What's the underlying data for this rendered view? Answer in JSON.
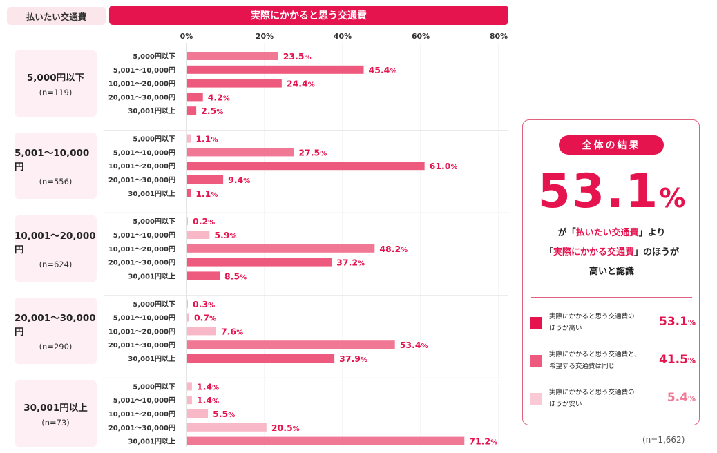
{
  "header": {
    "left_label": "払いたい交通費",
    "main_label": "実際にかかると思う交通費"
  },
  "chart_data": {
    "type": "bar",
    "orientation": "horizontal",
    "title": "実際にかかると思う交通費",
    "xlim": [
      0,
      80
    ],
    "ticks": [
      "0%",
      "20%",
      "40%",
      "60%",
      "80%"
    ],
    "tick_values": [
      0,
      20,
      40,
      60,
      80
    ],
    "categories": [
      "5,000円以下",
      "5,001〜10,000円",
      "10,001〜20,000円",
      "20,001〜30,000円",
      "30,001円以上"
    ],
    "groups": [
      {
        "name": "5,000円以下",
        "n": "(n=119)",
        "values": [
          23.5,
          45.4,
          24.4,
          4.2,
          2.5
        ],
        "labels": [
          "23.5",
          "45.4",
          "24.4",
          "4.2",
          "2.5"
        ]
      },
      {
        "name": "5,001〜10,000円",
        "n": "(n=556)",
        "values": [
          1.1,
          27.5,
          61.0,
          9.4,
          1.1
        ],
        "labels": [
          "1.1",
          "27.5",
          "61.0",
          "9.4",
          "1.1"
        ]
      },
      {
        "name": "10,001〜20,000円",
        "n": "(n=624)",
        "values": [
          0.2,
          5.9,
          48.2,
          37.2,
          8.5
        ],
        "labels": [
          "0.2",
          "5.9",
          "48.2",
          "37.2",
          "8.5"
        ]
      },
      {
        "name": "20,001〜30,000円",
        "n": "(n=290)",
        "values": [
          0.3,
          0.7,
          7.6,
          53.4,
          37.9
        ],
        "labels": [
          "0.3",
          "0.7",
          "7.6",
          "53.4",
          "37.9"
        ]
      },
      {
        "name": "30,001円以上",
        "n": "(n=73)",
        "values": [
          1.4,
          1.4,
          5.5,
          20.5,
          71.2
        ],
        "labels": [
          "1.4",
          "1.4",
          "5.5",
          "20.5",
          "71.2"
        ]
      }
    ],
    "percent_unit": "%",
    "bar_colors": {
      "higher": "#ee5a7e",
      "same": "#f07894",
      "lower": "#f8b8c8"
    },
    "bar_tiers": [
      [
        "same",
        "higher",
        "higher",
        "higher",
        "higher"
      ],
      [
        "lower",
        "same",
        "higher",
        "higher",
        "higher"
      ],
      [
        "lower",
        "lower",
        "same",
        "higher",
        "higher"
      ],
      [
        "lower",
        "lower",
        "lower",
        "same",
        "higher"
      ],
      [
        "lower",
        "lower",
        "lower",
        "lower",
        "same"
      ]
    ],
    "label_color": "#e5134e"
  },
  "summary": {
    "badge": "全体の結果",
    "big_number": "53.1",
    "big_unit": "%",
    "line1_pre": "が「",
    "line1_hl": "払いたい交通費",
    "line1_post": "」より",
    "line2_pre": "「",
    "line2_hl": "実際にかかる交通費",
    "line2_post": "」のほうが",
    "line3": "高いと認識",
    "legend": [
      {
        "line1": "実際にかかると思う交通費の",
        "line2": "ほうが高い",
        "value": "53.1",
        "unit": "%",
        "color": "#e5134e",
        "value_color": "#e5134e"
      },
      {
        "line1": "実際にかかると思う交通費と、",
        "line2": "希望する交通費は同じ",
        "value": "41.5",
        "unit": "%",
        "color": "#ee5a7e",
        "value_color": "#e5134e"
      },
      {
        "line1": "実際にかかると思う交通費の",
        "line2": "ほうが安い",
        "value": "5.4",
        "unit": "%",
        "color": "#f9c9d6",
        "value_color": "#f07894"
      }
    ]
  },
  "total_n": "(n=1,662)"
}
